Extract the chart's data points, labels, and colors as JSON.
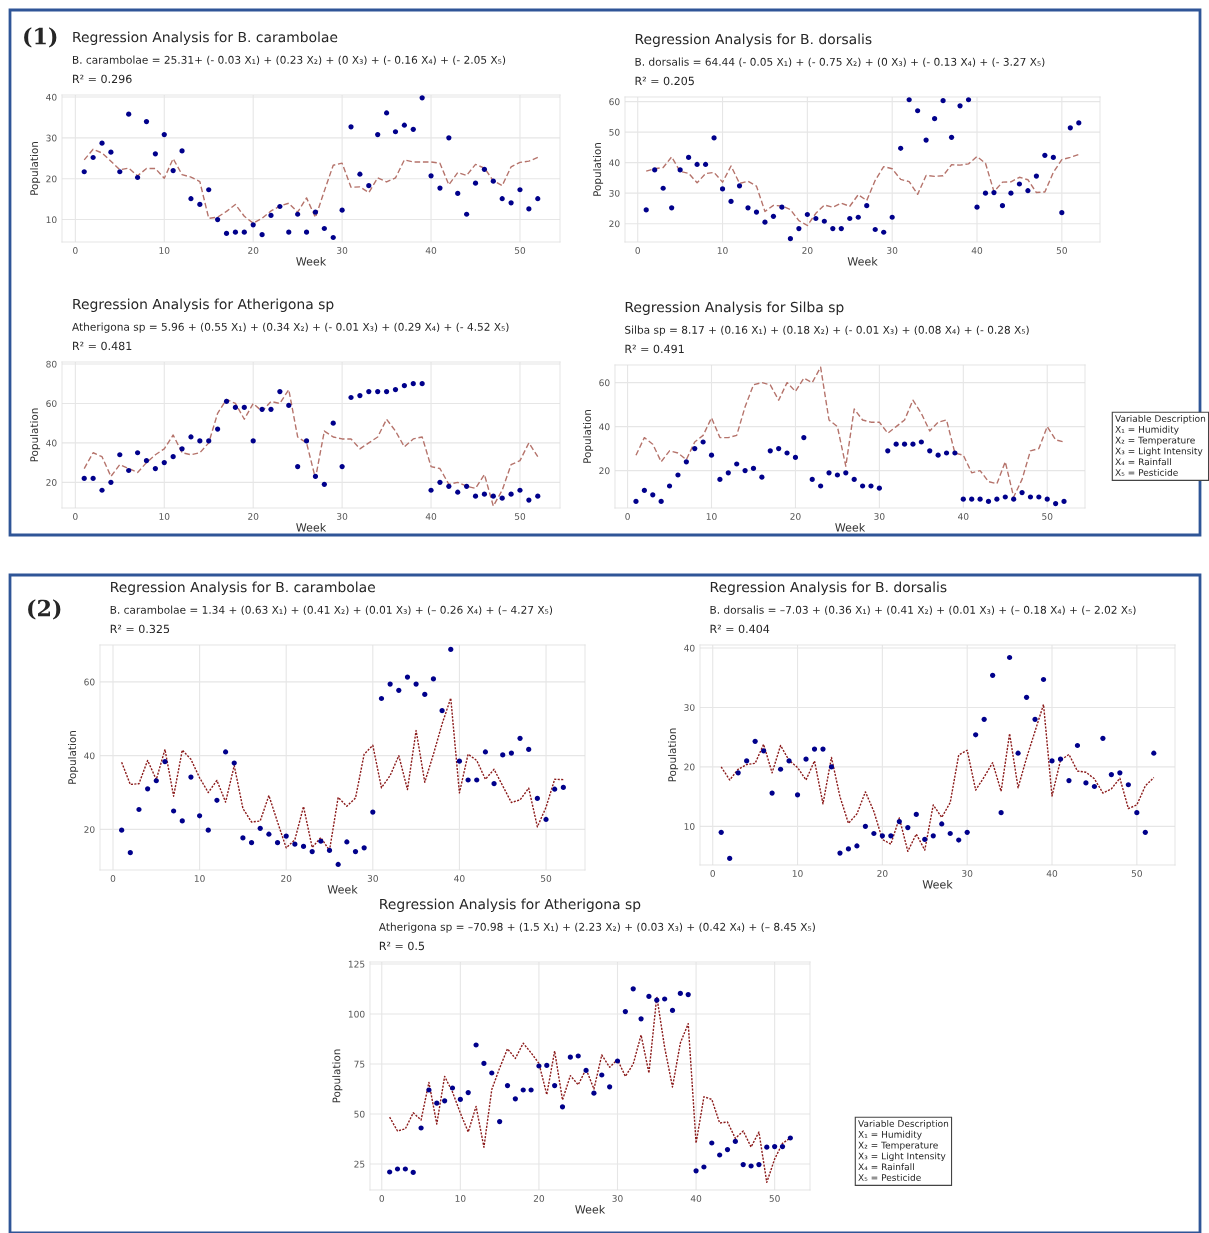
{
  "chart_data": [
    {
      "type": "scatter",
      "title": "Regression Analysis for B. carambolae",
      "subtitle": "B. carambolae = 25.31+ (- 0.03 X₁) + (0.23 X₂) + (0 X₃) + (- 0.16 X₄) + (- 2.05 X₅)",
      "annotations": [
        "R² = 0.296",
        "(1)"
      ],
      "xlabel": "Week",
      "ylabel": "Population",
      "xlim": [
        -1.5,
        54.5
      ],
      "xticks": [
        0,
        10,
        20,
        30,
        40,
        50
      ],
      "ylim": [
        4.5,
        40.5
      ],
      "yticks": [
        10,
        20,
        30,
        40
      ],
      "grid": true,
      "x": [
        1,
        2,
        3,
        4,
        5,
        6,
        7,
        8,
        9,
        10,
        11,
        12,
        13,
        14,
        15,
        16,
        17,
        18,
        19,
        20,
        21,
        22,
        23,
        24,
        25,
        26,
        27,
        28,
        29,
        30,
        31,
        32,
        33,
        34,
        35,
        36,
        37,
        38,
        39,
        40,
        41,
        42,
        43,
        44,
        45,
        46,
        47,
        48,
        49,
        50,
        51,
        52
      ],
      "series": [
        {
          "type": "scatter",
          "color": "#00008b",
          "marker": "circle",
          "values": [
            21.7,
            25.2,
            28.7,
            26.5,
            21.7,
            35.8,
            20.3,
            34,
            26.1,
            30.8,
            22,
            26.8,
            15.1,
            13.7,
            17.3,
            10,
            6.6,
            6.9,
            6.9,
            8.7,
            6.3,
            11,
            13.2,
            6.9,
            11.3,
            6.9,
            11.8,
            7.8,
            5.6,
            12.3,
            32.7,
            21.1,
            18.3,
            30.8,
            36.1,
            31.5,
            33.1,
            32.1,
            39.8,
            20.7,
            17.7,
            30,
            16.4,
            11.3,
            18.9,
            22.3,
            19.4,
            15.1,
            14.1,
            17.3,
            12.6,
            15.1
          ]
        },
        {
          "type": "line",
          "color": "#b5736b",
          "line_style": "dashed",
          "values": [
            24.6,
            27.2,
            26.3,
            24.3,
            22.2,
            22.6,
            20.7,
            22.5,
            22.5,
            20.1,
            24.9,
            21,
            20.4,
            19.3,
            10.3,
            10.6,
            12,
            13.7,
            10.8,
            9.1,
            10.3,
            12.1,
            13.3,
            14,
            11.8,
            15.3,
            10.5,
            17,
            23.3,
            23.8,
            17.9,
            18,
            16.6,
            20.2,
            19.2,
            20.2,
            24.6,
            24.1,
            24.1,
            24.1,
            23.8,
            18.5,
            21.5,
            20.8,
            23.5,
            22.6,
            19.5,
            18.3,
            22.9,
            24,
            24.3,
            25.2
          ]
        }
      ]
    },
    {
      "type": "scatter",
      "title": "Regression Analysis for B. dorsalis",
      "subtitle": "B. dorsalis = 64.44 (- 0.05 X₁) + (- 0.75 X₂) + (0 X₃) + (- 0.13 X₄) + (- 3.27 X₅)",
      "annotations": [
        "R² = 0.205"
      ],
      "xlabel": "Week",
      "ylabel": "Population",
      "xlim": [
        -1.5,
        54.5
      ],
      "xticks": [
        0,
        10,
        20,
        30,
        40,
        50
      ],
      "ylim": [
        14,
        61.5
      ],
      "yticks": [
        20,
        30,
        40,
        50,
        60
      ],
      "grid": true,
      "x": [
        1,
        2,
        3,
        4,
        5,
        6,
        7,
        8,
        9,
        10,
        11,
        12,
        13,
        14,
        15,
        16,
        17,
        18,
        19,
        20,
        21,
        22,
        23,
        24,
        25,
        26,
        27,
        28,
        29,
        30,
        31,
        32,
        33,
        34,
        35,
        36,
        37,
        38,
        39,
        40,
        41,
        42,
        43,
        44,
        45,
        46,
        47,
        48,
        49,
        50,
        51,
        52
      ],
      "series": [
        {
          "type": "scatter",
          "color": "#00008b",
          "marker": "circle",
          "values": [
            24.5,
            37.6,
            31.6,
            25.2,
            37.6,
            41.7,
            39.4,
            39.4,
            48.1,
            31.4,
            27.3,
            32.4,
            25.2,
            23.8,
            20.5,
            22.4,
            25.4,
            15.1,
            18.4,
            23,
            21.7,
            20.8,
            18.4,
            18.4,
            21.7,
            22.1,
            25.9,
            18.1,
            17.2,
            22.1,
            44.7,
            60.6,
            57,
            47.4,
            54.4,
            60.3,
            48.3,
            58.6,
            60.6,
            25.4,
            30,
            30.2,
            25.9,
            30,
            33,
            30.8,
            35.6,
            42.4,
            41.7,
            23.6,
            51.4,
            53
          ]
        },
        {
          "type": "line",
          "color": "#b5736b",
          "line_style": "dashed",
          "values": [
            37.2,
            38,
            38.4,
            41.9,
            37.1,
            36.5,
            33.4,
            36.4,
            36.8,
            33.6,
            38.9,
            33.2,
            33.9,
            32.3,
            24,
            26,
            25.8,
            24.6,
            21,
            19.4,
            23.4,
            26.1,
            25.4,
            26.7,
            25.7,
            29.5,
            27.6,
            34.2,
            38.7,
            38,
            34.5,
            33.8,
            29.6,
            35.8,
            35.5,
            35.7,
            39.3,
            39.2,
            39.6,
            42,
            39.8,
            30.5,
            33.6,
            33.7,
            35.2,
            34.4,
            30.2,
            30.4,
            36.8,
            41,
            41.7,
            42.7
          ]
        }
      ]
    },
    {
      "type": "scatter",
      "title": "Regression Analysis for Atherigona sp",
      "subtitle": "Atherigona sp = 5.96 + (0.55 X₁) + (0.34 X₂) + (- 0.01 X₃) + (0.29 X₄) + (- 4.52 X₅)",
      "annotations": [
        "R² = 0.481"
      ],
      "xlabel": "Week",
      "ylabel": "Population",
      "xlim": [
        -1.5,
        54.5
      ],
      "xticks": [
        0,
        10,
        20,
        30,
        40,
        50
      ],
      "ylim": [
        7,
        81
      ],
      "yticks": [
        20,
        40,
        60,
        80
      ],
      "grid": true,
      "x": [
        1,
        2,
        3,
        4,
        5,
        6,
        7,
        8,
        9,
        10,
        11,
        12,
        13,
        14,
        15,
        16,
        17,
        18,
        19,
        20,
        21,
        22,
        23,
        24,
        25,
        26,
        27,
        28,
        29,
        30,
        31,
        32,
        33,
        34,
        35,
        36,
        37,
        38,
        39,
        40,
        41,
        42,
        43,
        44,
        45,
        46,
        47,
        48,
        49,
        50,
        51,
        52
      ],
      "series": [
        {
          "type": "scatter",
          "color": "#00008b",
          "marker": "circle",
          "values": [
            22,
            22,
            16,
            20,
            34,
            26,
            35,
            31,
            27,
            30,
            33,
            37,
            43,
            41,
            41,
            47,
            61,
            58,
            58,
            41,
            57,
            57,
            66,
            59,
            28,
            41,
            23,
            19,
            50,
            28,
            63,
            64,
            66,
            66,
            66,
            67,
            69,
            70,
            70,
            16,
            20,
            18,
            15,
            18,
            13,
            14,
            13,
            12,
            14,
            16,
            11,
            13
          ]
        },
        {
          "type": "line",
          "color": "#b5736b",
          "line_style": "dashed",
          "values": [
            27,
            35,
            33,
            23,
            29,
            27,
            25,
            30,
            34,
            37,
            44,
            35,
            34,
            35,
            40,
            55,
            62,
            60,
            52,
            60,
            56,
            61,
            60,
            67,
            43,
            40,
            22,
            46,
            43,
            42,
            42,
            37,
            40,
            43,
            52,
            46,
            38,
            42,
            43,
            28,
            27,
            19,
            20,
            18,
            17,
            24,
            8,
            16,
            29,
            31,
            40,
            33
          ]
        }
      ]
    },
    {
      "type": "scatter",
      "title": "Regression Analysis for Silba sp",
      "subtitle": "Silba sp = 8.17 + (0.16 X₁) + (0.18 X₂) + (- 0.01 X₃) + (0.08 X₄) + (- 0.28 X₅)",
      "annotations": [
        "R² = 0.491",
        "Variable Description\nX₁ = Humidity\nX₂ = Temperature\nX₃ = Light Intensity\nX₄ = Rainfall\nX₅ = Pesticide"
      ],
      "xlabel": "Week",
      "ylabel": "Population",
      "xlim": [
        -1.5,
        54.5
      ],
      "xticks": [
        0,
        10,
        20,
        30,
        40,
        50
      ],
      "ylim": [
        3,
        68
      ],
      "yticks": [
        20,
        40,
        60
      ],
      "grid": true,
      "x": [
        1,
        2,
        3,
        4,
        5,
        6,
        7,
        8,
        9,
        10,
        11,
        12,
        13,
        14,
        15,
        16,
        17,
        18,
        19,
        20,
        21,
        22,
        23,
        24,
        25,
        26,
        27,
        28,
        29,
        30,
        31,
        32,
        33,
        34,
        35,
        36,
        37,
        38,
        39,
        40,
        41,
        42,
        43,
        44,
        45,
        46,
        47,
        48,
        49,
        50,
        51,
        52
      ],
      "series": [
        {
          "type": "scatter",
          "color": "#00008b",
          "marker": "circle",
          "values": [
            6,
            11,
            9,
            6,
            13,
            18,
            24,
            30,
            33,
            27,
            16,
            19,
            23,
            20,
            21,
            17,
            29,
            30,
            28,
            26,
            35,
            16,
            13,
            19,
            18,
            19,
            16,
            13,
            13,
            12,
            29,
            32,
            32,
            32,
            33,
            29,
            27,
            28,
            28,
            7,
            7,
            7,
            6,
            7,
            8,
            7,
            10,
            8,
            8,
            7,
            5,
            6
          ]
        },
        {
          "type": "line",
          "color": "#b5736b",
          "line_style": "dashed",
          "values": [
            27,
            35,
            32,
            24,
            29,
            28,
            25,
            33,
            36,
            44,
            35,
            35,
            36,
            49,
            59,
            60,
            59,
            52,
            60,
            56,
            62,
            60,
            67,
            43,
            40,
            22,
            48,
            43,
            42,
            42,
            37,
            40,
            43,
            52,
            46,
            38,
            42,
            43,
            28,
            27,
            19,
            20,
            15,
            14,
            24,
            8,
            16,
            29,
            30,
            40,
            34,
            33
          ]
        }
      ]
    },
    {
      "type": "scatter",
      "title": "Regression Analysis for B. carambolae",
      "subtitle": "B. carambolae = 1.34 + (0.63 X₁) + (0.41 X₂) + (0.01 X₃) + (– 0.26 X₄) + (– 4.27 X₅)",
      "annotations": [
        "R² = 0.325",
        "(2)"
      ],
      "xlabel": "Week",
      "ylabel": "Population",
      "xlim": [
        -1.5,
        54.5
      ],
      "xticks": [
        0,
        10,
        20,
        30,
        40,
        50
      ],
      "ylim": [
        9,
        70
      ],
      "yticks": [
        20,
        40,
        60
      ],
      "grid": true,
      "x": [
        1,
        2,
        3,
        4,
        5,
        6,
        7,
        8,
        9,
        10,
        11,
        12,
        13,
        14,
        15,
        16,
        17,
        18,
        19,
        20,
        21,
        22,
        23,
        24,
        25,
        26,
        27,
        28,
        29,
        30,
        31,
        32,
        33,
        34,
        35,
        36,
        37,
        38,
        39,
        40,
        41,
        42,
        43,
        44,
        45,
        46,
        47,
        48,
        49,
        50,
        51,
        52
      ],
      "series": [
        {
          "type": "scatter",
          "color": "#00008b",
          "marker": "circle",
          "values": [
            19.8,
            13.7,
            25.4,
            31,
            33.2,
            38.4,
            25,
            22.3,
            34.2,
            23.7,
            19.8,
            27.9,
            41,
            38,
            17.7,
            16.4,
            20.3,
            18.7,
            16.4,
            18.2,
            16,
            15.4,
            14,
            16.8,
            14.3,
            10.5,
            16.6,
            14,
            15,
            24.7,
            55.5,
            59.4,
            57.7,
            61.3,
            59.4,
            56.6,
            60.8,
            52.2,
            68.8,
            38.5,
            33.4,
            33.4,
            41,
            32.4,
            40.2,
            40.7,
            44.7,
            41.7,
            28.4,
            22.7,
            30.9,
            31.4
          ]
        },
        {
          "type": "line",
          "color": "#8b1a1a",
          "line_style": "dotted",
          "values": [
            38.2,
            32.2,
            32.4,
            38.7,
            33.5,
            41.7,
            29,
            41.5,
            39,
            34,
            30,
            33.3,
            27.4,
            37.3,
            25.7,
            22,
            22.3,
            29.2,
            22,
            15,
            17.2,
            26.2,
            15.1,
            17.8,
            14.3,
            28.7,
            26.3,
            28.5,
            40.4,
            42.8,
            31.3,
            34.6,
            40,
            30.8,
            46.8,
            32.8,
            40.4,
            48.6,
            55.6,
            29.9,
            40.4,
            38.7,
            33.6,
            36.3,
            31.8,
            27.3,
            28,
            31.2,
            20.7,
            26,
            33.6,
            33.5
          ]
        }
      ]
    },
    {
      "type": "scatter",
      "title": "Regression Analysis for B. dorsalis",
      "subtitle": "B. dorsalis = –7.03 + (0.36 X₁) + (0.41 X₂) + (0.01 X₃) + (– 0.18 X₄) + (– 2.02 X₅)",
      "annotations": [
        "R² = 0.404"
      ],
      "xlabel": "Week",
      "ylabel": "Population",
      "xlim": [
        -1.5,
        54.5
      ],
      "xticks": [
        0,
        10,
        20,
        30,
        40,
        50
      ],
      "ylim": [
        3.5,
        40.5
      ],
      "yticks": [
        10,
        20,
        30,
        40
      ],
      "grid": true,
      "x": [
        1,
        2,
        3,
        4,
        5,
        6,
        7,
        8,
        9,
        10,
        11,
        12,
        13,
        14,
        15,
        16,
        17,
        18,
        19,
        20,
        21,
        22,
        23,
        24,
        25,
        26,
        27,
        28,
        29,
        30,
        31,
        32,
        33,
        34,
        35,
        36,
        37,
        38,
        39,
        40,
        41,
        42,
        43,
        44,
        45,
        46,
        47,
        48,
        49,
        50,
        51,
        52
      ],
      "series": [
        {
          "type": "scatter",
          "color": "#00008b",
          "marker": "circle",
          "values": [
            9,
            4.6,
            19,
            21,
            24.3,
            22.7,
            15.6,
            19.6,
            21,
            15.3,
            21.3,
            23,
            23,
            20,
            5.5,
            6.2,
            6.7,
            10,
            8.8,
            8.4,
            8.4,
            10.8,
            9.8,
            12,
            7.8,
            8.4,
            10.4,
            8.8,
            7.7,
            9,
            25.4,
            28,
            35.4,
            12.3,
            38.4,
            22.3,
            31.7,
            28,
            34.7,
            21,
            21.3,
            17.7,
            23.6,
            17.3,
            16.7,
            24.8,
            18.7,
            19,
            17,
            12.3,
            9,
            22.3
          ]
        },
        {
          "type": "line",
          "color": "#8b1a1a",
          "line_style": "dotted",
          "values": [
            20,
            17.8,
            19.6,
            20.4,
            20.6,
            23.8,
            19,
            23.6,
            21.1,
            19.9,
            17.8,
            21,
            13.8,
            21.6,
            15,
            10.5,
            12.1,
            15.8,
            12.5,
            7.8,
            7,
            11.4,
            5.8,
            8.7,
            6,
            13.6,
            11.5,
            14,
            22,
            22.8,
            16.1,
            18.3,
            20.7,
            15.9,
            25.6,
            16.5,
            21.5,
            26,
            30.5,
            15.1,
            21.1,
            22.1,
            19.3,
            19.1,
            18,
            15.6,
            16.3,
            18.1,
            13,
            13.6,
            16.8,
            18.2
          ]
        }
      ]
    },
    {
      "type": "scatter",
      "title": "Regression Analysis for Atherigona sp",
      "subtitle": "Atherigona sp = –70.98 + (1.5 X₁) + (2.23 X₂) + (0.03 X₃) + (0.42 X₄) + (– 8.45 X₅)",
      "annotations": [
        "R² = 0.5",
        "Variable Description\nX₁ = Humidity\nX₂ = Temperature\nX₃ = Light Intensity\nX₄ = Rainfall\nX₅ = Pesticide"
      ],
      "xlabel": "Week",
      "ylabel": "Population",
      "xlim": [
        -1.5,
        54.5
      ],
      "xticks": [
        0,
        10,
        20,
        30,
        40,
        50
      ],
      "ylim": [
        12,
        126
      ],
      "yticks": [
        25,
        50,
        75,
        100,
        125
      ],
      "grid": true,
      "x": [
        1,
        2,
        3,
        4,
        5,
        6,
        7,
        8,
        9,
        10,
        11,
        12,
        13,
        14,
        15,
        16,
        17,
        18,
        19,
        20,
        21,
        22,
        23,
        24,
        25,
        26,
        27,
        28,
        29,
        30,
        31,
        32,
        33,
        34,
        35,
        36,
        37,
        38,
        39,
        40,
        41,
        42,
        43,
        44,
        45,
        46,
        47,
        48,
        49,
        50,
        51,
        52
      ],
      "series": [
        {
          "type": "scatter",
          "color": "#00008b",
          "marker": "circle",
          "values": [
            21,
            22.5,
            22.5,
            20.8,
            43,
            62,
            55.4,
            56.6,
            63,
            57.3,
            60.7,
            84.5,
            75.3,
            70.5,
            46.2,
            64.2,
            57.6,
            62,
            62,
            74,
            74.3,
            64.2,
            53.6,
            78.4,
            79,
            71.8,
            60.4,
            69.5,
            63.6,
            76.5,
            101.2,
            112.6,
            97.6,
            108.8,
            106.9,
            107.5,
            101.8,
            110.3,
            109.7,
            21.6,
            23.5,
            35.5,
            29.5,
            32.2,
            36.3,
            24.7,
            24,
            24.7,
            33.4,
            33.7,
            33.7,
            38
          ]
        },
        {
          "type": "line",
          "color": "#8b1a1a",
          "line_style": "dotted",
          "values": [
            48.4,
            41.5,
            42.6,
            50.6,
            47,
            65.8,
            45,
            68.8,
            61,
            50.5,
            41,
            53.8,
            33.4,
            62.3,
            73,
            82.6,
            77.8,
            85.4,
            80.6,
            75.3,
            59.7,
            81.5,
            57,
            69.2,
            64.6,
            72.5,
            62.5,
            79.5,
            73.4,
            77.2,
            68.8,
            75,
            89.5,
            70.5,
            108.7,
            83.3,
            63.5,
            85.5,
            95.2,
            35.4,
            58.6,
            57.3,
            45.5,
            46,
            37.8,
            41.5,
            33.5,
            41,
            15.8,
            27.5,
            35.3,
            38
          ]
        }
      ]
    }
  ]
}
